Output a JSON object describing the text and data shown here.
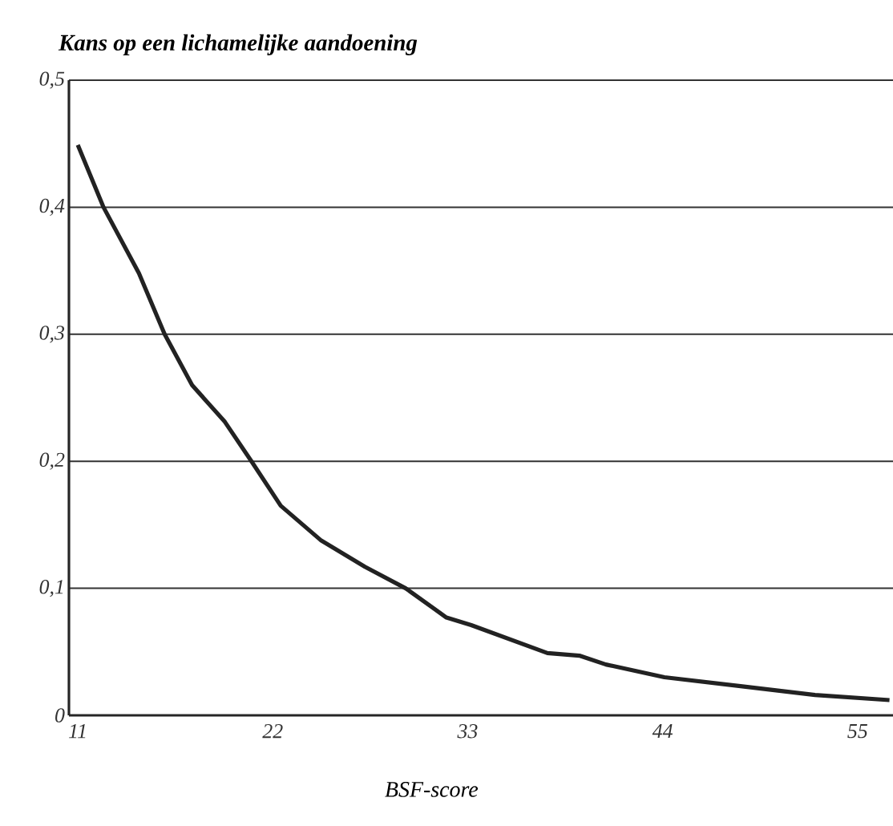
{
  "chart_data": {
    "type": "line",
    "ylabel": "Kans op een lichamelijke aandoening",
    "xlabel": "BSF-score",
    "x": [
      11,
      12.45,
      14.45,
      15.9,
      17.45,
      19.3,
      20.8,
      22.45,
      24.7,
      27.2,
      29.5,
      31.8,
      33.2,
      37.5,
      39.3,
      40.8,
      44.1,
      48.4,
      52.6,
      56.8
    ],
    "series": [
      {
        "color": "#222222",
        "values": [
          0.449,
          0.4,
          0.348,
          0.3,
          0.26,
          0.231,
          0.2,
          0.165,
          0.138,
          0.117,
          0.1,
          0.077,
          0.071,
          0.049,
          0.047,
          0.04,
          0.03,
          0.023,
          0.016,
          0.012
        ]
      }
    ],
    "xlim": [
      10.5,
      57
    ],
    "ylim": [
      0,
      0.5
    ],
    "xticks": [
      11,
      22,
      33,
      44,
      55
    ],
    "yticks": [
      {
        "value": 0,
        "label": "0"
      },
      {
        "value": 0.1,
        "label": "0,1"
      },
      {
        "value": 0.2,
        "label": "0,2"
      },
      {
        "value": 0.3,
        "label": "0,3"
      },
      {
        "value": 0.4,
        "label": "0,4"
      },
      {
        "value": 0.5,
        "label": "0,5"
      }
    ],
    "grid": "y",
    "marker": "none",
    "line_style": "solid"
  }
}
